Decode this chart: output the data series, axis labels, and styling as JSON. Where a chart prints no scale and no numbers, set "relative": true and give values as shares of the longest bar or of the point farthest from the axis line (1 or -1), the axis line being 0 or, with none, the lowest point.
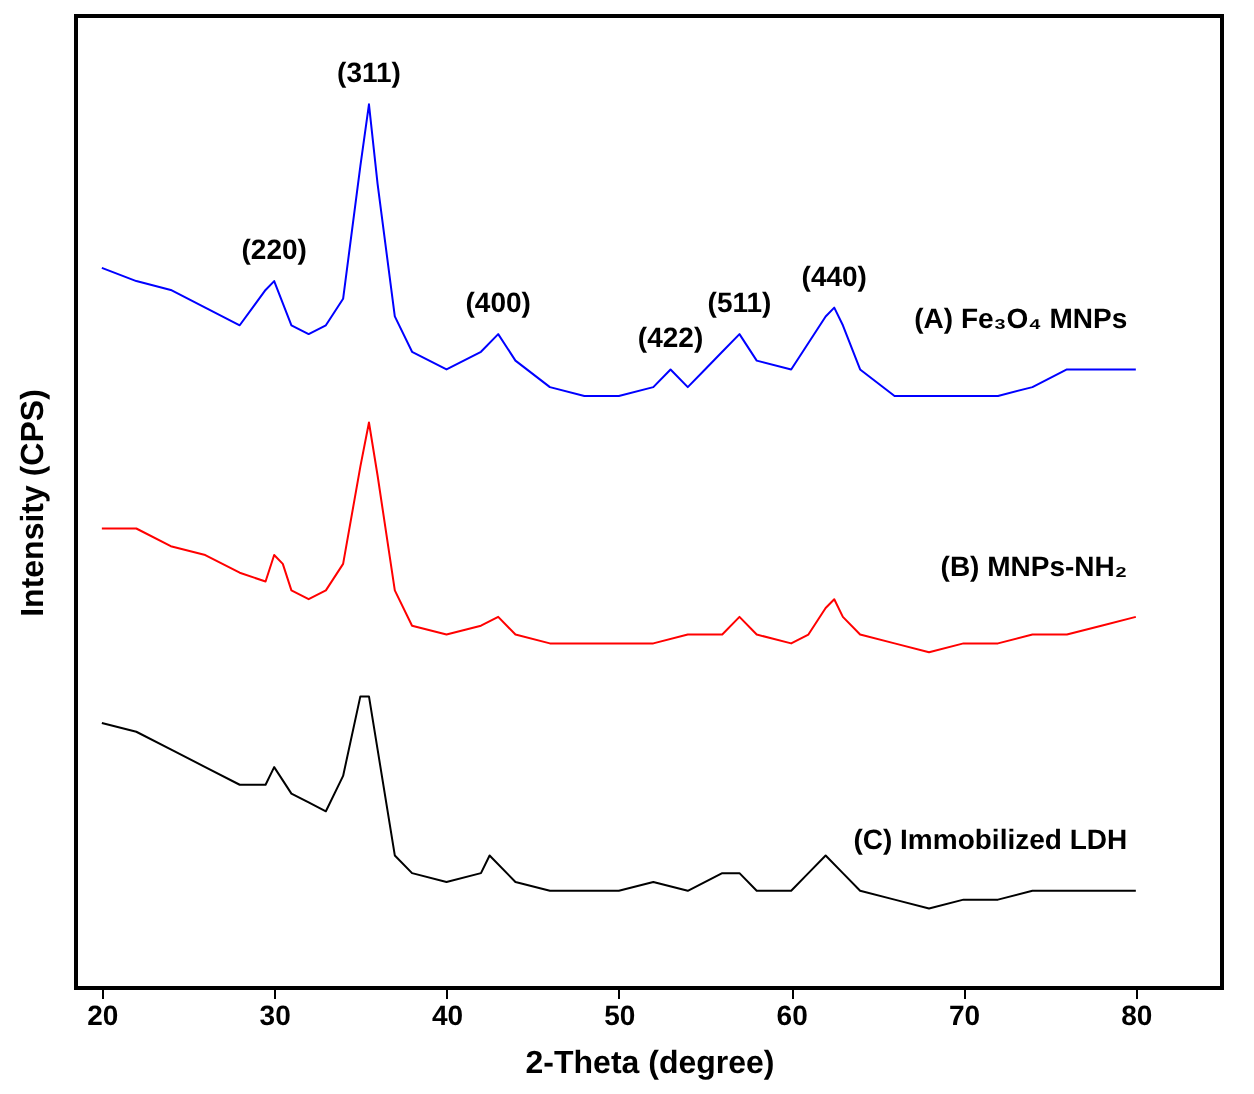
{
  "chart_data": {
    "type": "line",
    "relative": true,
    "xlabel": "2-Theta (degree)",
    "ylabel": "Intensity (CPS)",
    "xlim": [
      18.5,
      85
    ],
    "xticks": [
      20,
      30,
      40,
      50,
      60,
      70,
      80
    ],
    "grid": false,
    "series": [
      {
        "name": "(A) Fe₃O₄ MNPs",
        "color": "#0000ff",
        "x": [
          20,
          22,
          24,
          26,
          28,
          29.5,
          30,
          31,
          32,
          33,
          34,
          35,
          35.5,
          36,
          37,
          38,
          40,
          42,
          43,
          44,
          46,
          48,
          50,
          52,
          53,
          54,
          55,
          56,
          57,
          58,
          60,
          61,
          62,
          62.5,
          63,
          64,
          66,
          68,
          70,
          72,
          74,
          76,
          78,
          80
        ],
        "values": [
          0.815,
          0.8,
          0.79,
          0.77,
          0.75,
          0.79,
          0.8,
          0.75,
          0.74,
          0.75,
          0.78,
          0.93,
          1.0,
          0.91,
          0.76,
          0.72,
          0.7,
          0.72,
          0.74,
          0.71,
          0.68,
          0.67,
          0.67,
          0.68,
          0.7,
          0.68,
          0.7,
          0.72,
          0.74,
          0.71,
          0.7,
          0.73,
          0.76,
          0.77,
          0.75,
          0.7,
          0.67,
          0.67,
          0.67,
          0.67,
          0.68,
          0.7,
          0.7,
          0.7
        ]
      },
      {
        "name": "(B) MNPs-NH₂",
        "color": "#ff0000",
        "x": [
          20,
          22,
          24,
          26,
          28,
          29.5,
          30,
          30.5,
          31,
          32,
          33,
          34,
          35,
          35.5,
          36,
          37,
          38,
          40,
          42,
          43,
          44,
          46,
          48,
          50,
          52,
          54,
          56,
          57,
          58,
          60,
          61,
          62,
          62.5,
          63,
          64,
          66,
          68,
          70,
          72,
          74,
          76,
          78,
          80
        ],
        "values": [
          0.52,
          0.52,
          0.5,
          0.49,
          0.47,
          0.46,
          0.49,
          0.48,
          0.45,
          0.44,
          0.45,
          0.48,
          0.59,
          0.64,
          0.58,
          0.45,
          0.41,
          0.4,
          0.41,
          0.42,
          0.4,
          0.39,
          0.39,
          0.39,
          0.39,
          0.4,
          0.4,
          0.42,
          0.4,
          0.39,
          0.4,
          0.43,
          0.44,
          0.42,
          0.4,
          0.39,
          0.38,
          0.39,
          0.39,
          0.4,
          0.4,
          0.41,
          0.42
        ]
      },
      {
        "name": "(C) Immobilized LDH",
        "color": "#000000",
        "x": [
          20,
          22,
          24,
          26,
          28,
          29.5,
          30,
          31,
          32,
          33,
          34,
          35,
          35.5,
          36,
          37,
          38,
          40,
          42,
          42.5,
          44,
          46,
          48,
          50,
          52,
          54,
          56,
          57,
          58,
          60,
          61,
          62,
          63,
          64,
          66,
          68,
          70,
          72,
          74,
          76,
          78,
          80
        ],
        "values": [
          0.3,
          0.29,
          0.27,
          0.25,
          0.23,
          0.23,
          0.25,
          0.22,
          0.21,
          0.2,
          0.24,
          0.33,
          0.33,
          0.27,
          0.15,
          0.13,
          0.12,
          0.13,
          0.15,
          0.12,
          0.11,
          0.11,
          0.11,
          0.12,
          0.11,
          0.13,
          0.13,
          0.11,
          0.11,
          0.13,
          0.15,
          0.13,
          0.11,
          0.1,
          0.09,
          0.1,
          0.1,
          0.11,
          0.11,
          0.11,
          0.11
        ]
      }
    ],
    "annotations": [
      {
        "text": "(220)",
        "x": 30,
        "y": 0.8
      },
      {
        "text": "(311)",
        "x": 35.5,
        "y": 1.0
      },
      {
        "text": "(400)",
        "x": 43,
        "y": 0.74
      },
      {
        "text": "(422)",
        "x": 53,
        "y": 0.7
      },
      {
        "text": "(511)",
        "x": 57,
        "y": 0.74
      },
      {
        "text": "(440)",
        "x": 62.5,
        "y": 0.77
      }
    ]
  }
}
